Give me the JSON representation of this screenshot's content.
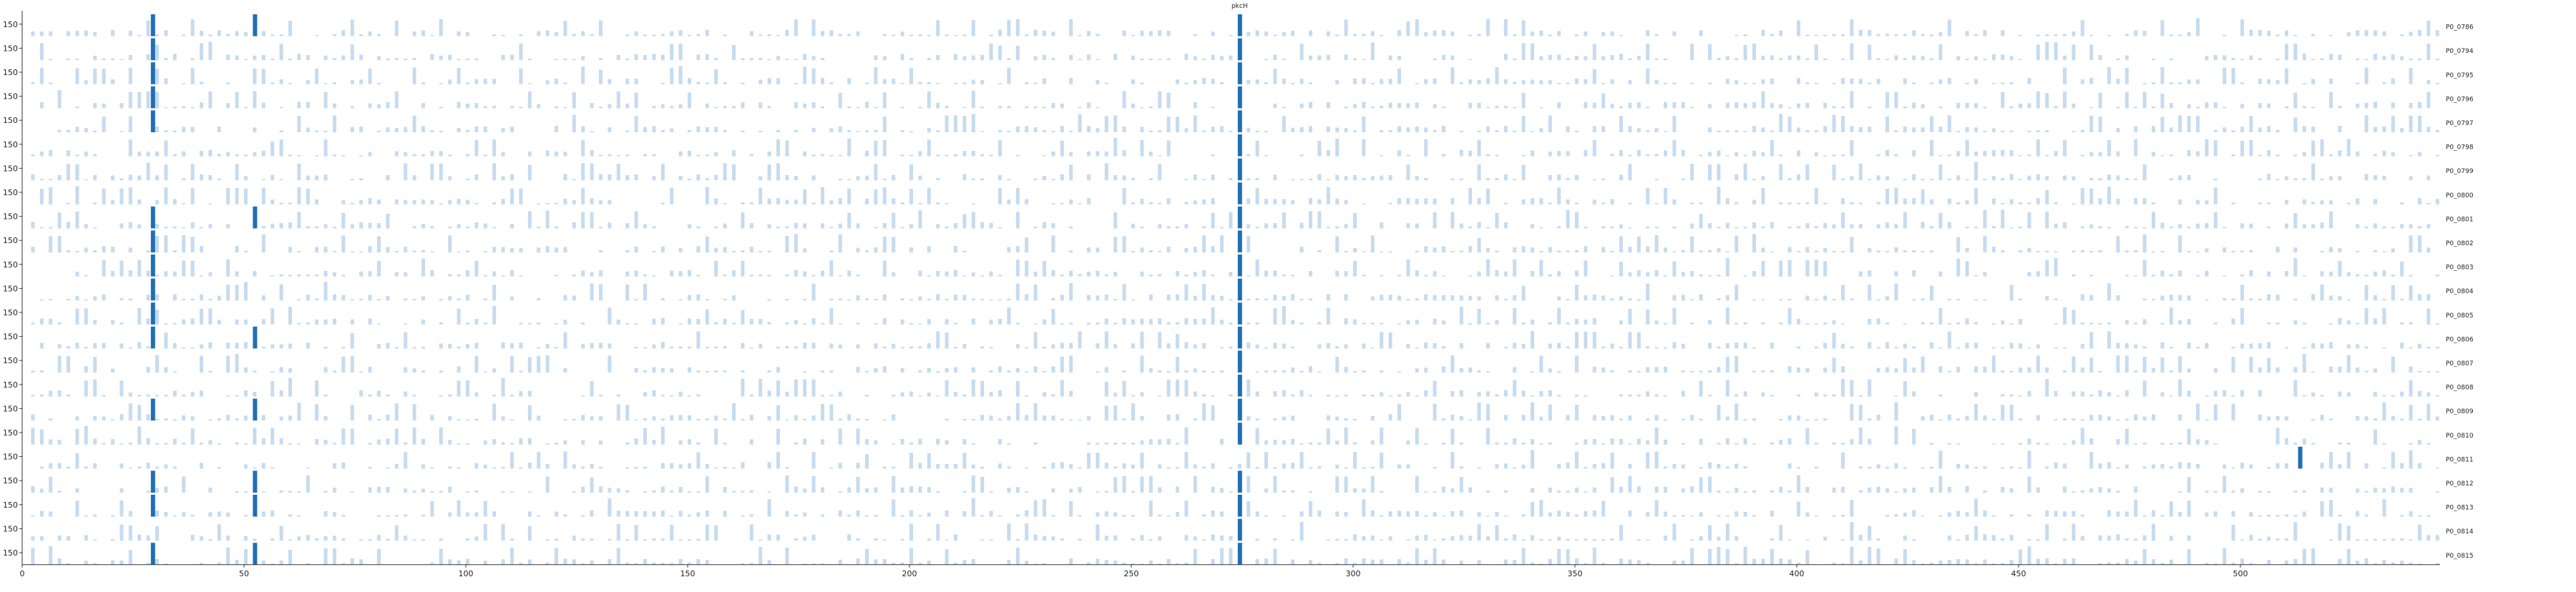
{
  "chart_data": {
    "type": "bar",
    "layout": "stacked small multiples sharing a position x-axis",
    "xlim": [
      0,
      545
    ],
    "x_ticks": [
      0,
      50,
      100,
      150,
      200,
      250,
      300,
      350,
      400,
      450,
      500
    ],
    "y_tick_label_each_row": "150",
    "annotation": {
      "text": "pkcH",
      "x": 274
    },
    "highlight_color": "#1f6fb5",
    "base_color": "#c6dbef",
    "rows": [
      {
        "name": "P0_0786",
        "highlights": [
          29,
          52,
          274
        ]
      },
      {
        "name": "P0_0794",
        "highlights": [
          29,
          274
        ]
      },
      {
        "name": "P0_0795",
        "highlights": [
          29,
          274
        ]
      },
      {
        "name": "P0_0796",
        "highlights": [
          29,
          274
        ]
      },
      {
        "name": "P0_0797",
        "highlights": [
          29,
          274
        ]
      },
      {
        "name": "P0_0798",
        "highlights": [
          274
        ]
      },
      {
        "name": "P0_0799",
        "highlights": [
          274
        ]
      },
      {
        "name": "P0_0800",
        "highlights": [
          274
        ]
      },
      {
        "name": "P0_0801",
        "highlights": [
          29,
          52,
          274
        ]
      },
      {
        "name": "P0_0802",
        "highlights": [
          29,
          274
        ]
      },
      {
        "name": "P0_0803",
        "highlights": [
          29,
          274
        ]
      },
      {
        "name": "P0_0804",
        "highlights": [
          29,
          274
        ]
      },
      {
        "name": "P0_0805",
        "highlights": [
          29,
          274
        ]
      },
      {
        "name": "P0_0806",
        "highlights": [
          29,
          52,
          274
        ]
      },
      {
        "name": "P0_0807",
        "highlights": [
          274
        ]
      },
      {
        "name": "P0_0808",
        "highlights": [
          274
        ]
      },
      {
        "name": "P0_0809",
        "highlights": [
          29,
          52,
          274
        ]
      },
      {
        "name": "P0_0810",
        "highlights": [
          274
        ]
      },
      {
        "name": "P0_0811",
        "highlights": [
          513
        ]
      },
      {
        "name": "P0_0812",
        "highlights": [
          29,
          52,
          274
        ]
      },
      {
        "name": "P0_0813",
        "highlights": [
          29,
          52,
          274
        ]
      },
      {
        "name": "P0_0814",
        "highlights": [
          274
        ]
      },
      {
        "name": "P0_0815",
        "highlights": [
          29,
          52,
          274
        ]
      }
    ]
  }
}
